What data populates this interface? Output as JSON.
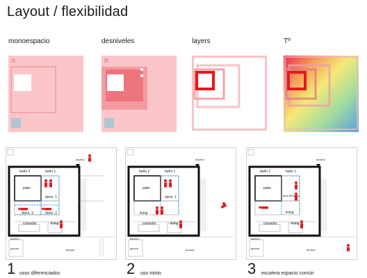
{
  "title": "Layout / flexibilidad",
  "concepts": [
    {
      "label": "monoespacio"
    },
    {
      "label": "desniveles"
    },
    {
      "label": "layers"
    },
    {
      "label": "Tº"
    }
  ],
  "plan_labels": {
    "entrance": "acceso",
    "patio": "patio",
    "bath1": "baño 1",
    "bath2": "baño 2",
    "bed1": "dorm. 1",
    "bed2": "dorm. 2",
    "bed3": "dorm. 3",
    "dining": "comedor",
    "living": "living",
    "kitchen": "kitchen",
    "jacuzzi": "jacuzzi",
    "terrace": "terraza",
    "workshop": "atea flexibles"
  },
  "plans": [
    {
      "number": "1",
      "caption": "usos diferenciados"
    },
    {
      "number": "2",
      "caption": "uso mixto"
    },
    {
      "number": "3",
      "caption": "escalera espacio común"
    }
  ],
  "colors": {
    "pink": "#f7b4b8",
    "red": "#e3191c",
    "blue": "#4aa9d8"
  }
}
